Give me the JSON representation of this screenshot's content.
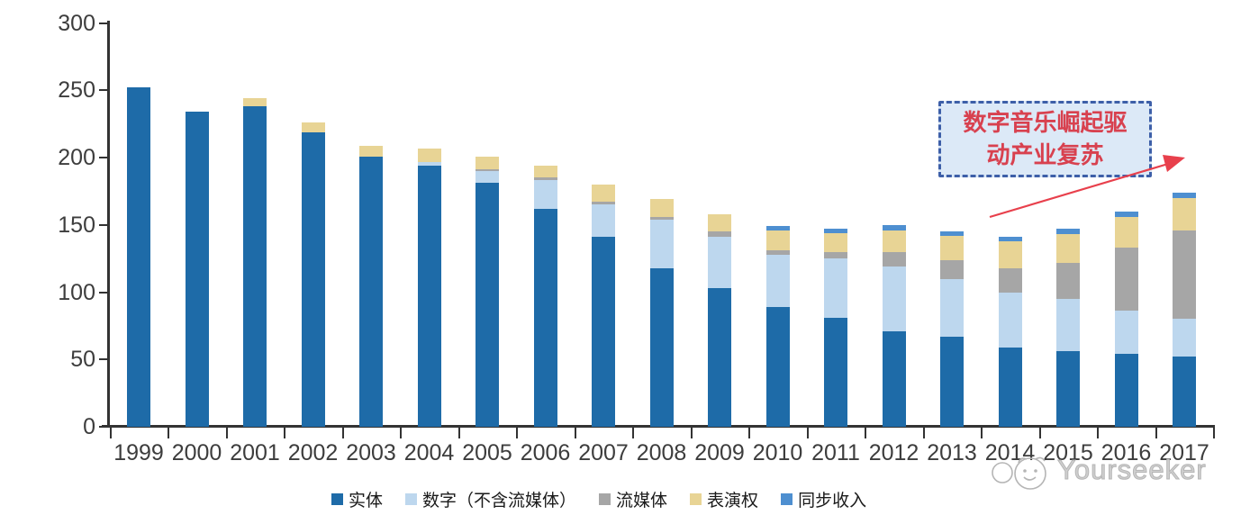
{
  "chart_data": {
    "type": "bar",
    "stacked": true,
    "categories": [
      "1999",
      "2000",
      "2001",
      "2002",
      "2003",
      "2004",
      "2005",
      "2006",
      "2007",
      "2008",
      "2009",
      "2010",
      "2011",
      "2012",
      "2013",
      "2014",
      "2015",
      "2016",
      "2017"
    ],
    "series": [
      {
        "key": "physical",
        "name": "实体",
        "color": "#1E6BA8",
        "values": [
          252,
          234,
          238,
          219,
          201,
          194,
          181,
          162,
          141,
          118,
          103,
          89,
          81,
          71,
          67,
          59,
          56,
          54,
          52
        ]
      },
      {
        "key": "digital-excl-streaming",
        "name": "数字（不含流媒体）",
        "color": "#BDD7EE",
        "values": [
          0,
          0,
          0,
          0,
          0,
          3,
          9,
          21,
          24,
          36,
          38,
          39,
          44,
          48,
          43,
          41,
          39,
          32,
          28
        ]
      },
      {
        "key": "streaming",
        "name": "流媒体",
        "color": "#A6A6A6",
        "values": [
          0,
          0,
          0,
          0,
          0,
          0,
          1,
          2,
          2,
          2,
          4,
          3,
          5,
          11,
          14,
          18,
          27,
          47,
          66
        ]
      },
      {
        "key": "performance-rights",
        "name": "表演权",
        "color": "#E8D495",
        "values": [
          0,
          0,
          6,
          7,
          8,
          10,
          10,
          9,
          13,
          13,
          13,
          15,
          14,
          16,
          18,
          20,
          21,
          23,
          24
        ]
      },
      {
        "key": "sync-revenue",
        "name": "同步收入",
        "color": "#4E8FD0",
        "values": [
          0,
          0,
          0,
          0,
          0,
          0,
          0,
          0,
          0,
          0,
          0,
          3,
          3,
          4,
          3,
          3,
          4,
          4,
          4
        ]
      }
    ],
    "totals": [
      252,
      234,
      244,
      226,
      209,
      207,
      201,
      194,
      180,
      169,
      158,
      149,
      147,
      150,
      145,
      141,
      147,
      160,
      174
    ],
    "ylim": [
      0,
      300
    ],
    "yticks": [
      0,
      50,
      100,
      150,
      200,
      250,
      300
    ],
    "xlabel": "",
    "ylabel": "",
    "title": "",
    "grid": false,
    "legend_position": "bottom"
  },
  "annotation": {
    "line1": "数字音乐崛起驱",
    "line2": "动产业复苏",
    "text_color": "#D8414F",
    "border_color": "#3D5FA8",
    "bg_color": "#DCE9F7",
    "arrow_color": "#E8404C"
  },
  "watermark": {
    "text": "Yourseeker"
  },
  "colors": {
    "axis": "#333333",
    "axis_labels": "#3D3D3D",
    "watermark": "#BDBDBD"
  }
}
